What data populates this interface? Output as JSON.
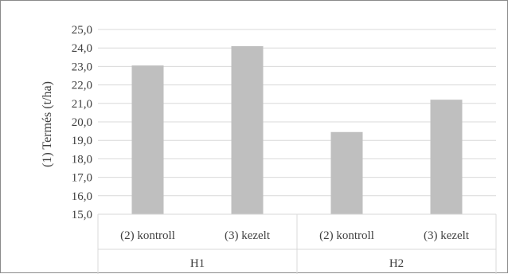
{
  "chart_data": {
    "type": "bar",
    "ylabel": "(1) Termés (t/ha)",
    "xlabel": "",
    "ylim": [
      15.0,
      25.0
    ],
    "y_ticks": [
      "15,0",
      "16,0",
      "17,0",
      "18,0",
      "19,0",
      "20,0",
      "21,0",
      "22,0",
      "23,0",
      "24,0",
      "25,0"
    ],
    "grid": true,
    "legend": "none",
    "bar_color": "#bfbfbf",
    "grid_color": "#d9d9d9",
    "categories": [
      "(2) kontroll",
      "(3) kezelt",
      "(2) kontroll",
      "(3) kezelt"
    ],
    "groups": [
      {
        "label": "H1",
        "categories": [
          "(2) kontroll",
          "(3) kezelt"
        ]
      },
      {
        "label": "H2",
        "categories": [
          "(2) kontroll",
          "(3) kezelt"
        ]
      }
    ],
    "values": [
      23.05,
      24.1,
      19.45,
      21.2
    ]
  }
}
